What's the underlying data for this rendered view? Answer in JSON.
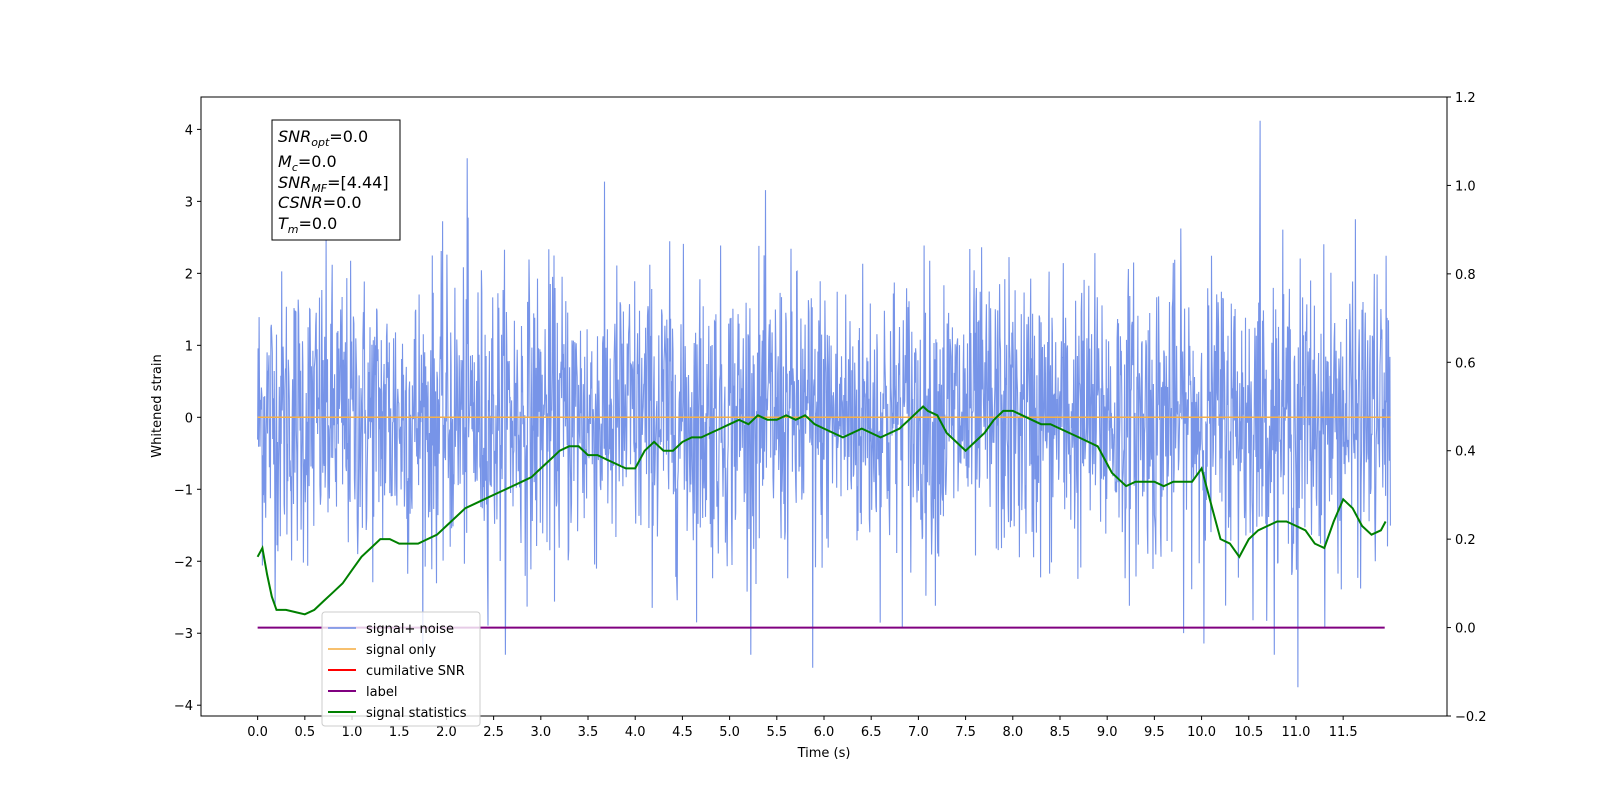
{
  "chart_data": {
    "type": "line",
    "xlabel": "Time (s)",
    "ylabel": "Whitened strain",
    "xlim": [
      -0.6,
      12.6
    ],
    "ylim": [
      -4.15,
      4.45
    ],
    "y2lim": [
      -0.2,
      1.2
    ],
    "x_ticks": [
      0.0,
      0.5,
      1.0,
      1.5,
      2.0,
      2.5,
      3.0,
      3.5,
      4.0,
      4.5,
      5.0,
      5.5,
      6.0,
      6.5,
      7.0,
      7.5,
      8.0,
      8.5,
      9.0,
      9.5,
      10.0,
      10.5,
      11.0,
      11.5
    ],
    "x_tick_labels": [
      "0.0",
      "0.5",
      "1.0",
      "1.5",
      "2.0",
      "2.5",
      "3.0",
      "3.5",
      "4.0",
      "4.5",
      "5.0",
      "5.5",
      "6.0",
      "6.5",
      "7.0",
      "7.5",
      "8.0",
      "8.5",
      "9.0",
      "9.5",
      "10.0",
      "10.5",
      "11.0",
      "11.5"
    ],
    "y_ticks": [
      -4,
      -3,
      -2,
      -1,
      0,
      1,
      2,
      3,
      4
    ],
    "y_tick_labels": [
      "−4",
      "−3",
      "−2",
      "−1",
      "0",
      "1",
      "2",
      "3",
      "4"
    ],
    "y2_ticks": [
      -0.2,
      0.0,
      0.2,
      0.4,
      0.6,
      0.8,
      1.0,
      1.2
    ],
    "y2_tick_labels": [
      "−0.2",
      "0.0",
      "0.2",
      "0.4",
      "0.6",
      "0.8",
      "1.0",
      "1.2"
    ],
    "legend_placement": "lower-left",
    "annotation_box": {
      "placement": "top-left",
      "lines": [
        {
          "base": "SNR",
          "sub": "opt",
          "value": "=0.0"
        },
        {
          "base": "M",
          "sub": "c",
          "value": "=0.0"
        },
        {
          "base": "SNR",
          "sub": "MF",
          "value": "=[4.44]"
        },
        {
          "base": "CSNR",
          "sub": "",
          "value": "=0.0"
        },
        {
          "base": "T",
          "sub": "m",
          "value": "=0.0"
        }
      ]
    },
    "series": [
      {
        "name": "signal+ noise",
        "color": "#6b8be6",
        "axis": "left",
        "x_range": [
          0.0,
          12.0
        ],
        "noise_std": 1.0,
        "notable_peaks": [
          [
            2.22,
            3.6
          ],
          [
            10.62,
            4.12
          ],
          [
            11.02,
            -3.75
          ],
          [
            5.88,
            -3.48
          ]
        ]
      },
      {
        "name": "signal only",
        "color": "#f5b04a",
        "axis": "left",
        "x": [
          0.0,
          12.0
        ],
        "y": [
          0.0,
          0.0
        ]
      },
      {
        "name": "cumilative SNR",
        "color": "#ff0000",
        "axis": "right",
        "x": [],
        "y": []
      },
      {
        "name": "label",
        "color": "#800080",
        "axis": "right",
        "x": [
          0.0,
          11.94
        ],
        "y": [
          0.0,
          0.0
        ]
      },
      {
        "name": "signal statistics",
        "color": "#008000",
        "axis": "right",
        "x": [
          0.0,
          0.05,
          0.1,
          0.15,
          0.2,
          0.3,
          0.4,
          0.5,
          0.6,
          0.7,
          0.8,
          0.9,
          1.0,
          1.1,
          1.2,
          1.3,
          1.4,
          1.5,
          1.6,
          1.7,
          1.8,
          1.9,
          2.0,
          2.1,
          2.2,
          2.3,
          2.4,
          2.5,
          2.6,
          2.7,
          2.8,
          2.9,
          3.0,
          3.1,
          3.2,
          3.3,
          3.4,
          3.5,
          3.6,
          3.7,
          3.8,
          3.9,
          4.0,
          4.1,
          4.2,
          4.3,
          4.4,
          4.5,
          4.6,
          4.7,
          4.8,
          4.9,
          5.0,
          5.1,
          5.2,
          5.3,
          5.4,
          5.5,
          5.6,
          5.7,
          5.8,
          5.9,
          6.0,
          6.1,
          6.2,
          6.3,
          6.4,
          6.5,
          6.6,
          6.7,
          6.8,
          6.9,
          7.0,
          7.05,
          7.1,
          7.2,
          7.3,
          7.4,
          7.5,
          7.6,
          7.7,
          7.8,
          7.9,
          8.0,
          8.1,
          8.2,
          8.3,
          8.4,
          8.5,
          8.6,
          8.7,
          8.8,
          8.9,
          9.0,
          9.05,
          9.1,
          9.2,
          9.3,
          9.4,
          9.5,
          9.6,
          9.7,
          9.8,
          9.9,
          10.0,
          10.1,
          10.2,
          10.3,
          10.4,
          10.5,
          10.6,
          10.7,
          10.8,
          10.9,
          11.0,
          11.1,
          11.2,
          11.3,
          11.4,
          11.5,
          11.6,
          11.7,
          11.8,
          11.9,
          11.95
        ],
        "y": [
          0.16,
          0.18,
          0.12,
          0.07,
          0.04,
          0.04,
          0.035,
          0.03,
          0.04,
          0.06,
          0.08,
          0.1,
          0.13,
          0.16,
          0.18,
          0.2,
          0.2,
          0.19,
          0.19,
          0.19,
          0.2,
          0.21,
          0.23,
          0.25,
          0.27,
          0.28,
          0.29,
          0.3,
          0.31,
          0.32,
          0.33,
          0.34,
          0.36,
          0.38,
          0.4,
          0.41,
          0.41,
          0.39,
          0.39,
          0.38,
          0.37,
          0.36,
          0.36,
          0.4,
          0.42,
          0.4,
          0.4,
          0.42,
          0.43,
          0.43,
          0.44,
          0.45,
          0.46,
          0.47,
          0.46,
          0.48,
          0.47,
          0.47,
          0.48,
          0.47,
          0.48,
          0.46,
          0.45,
          0.44,
          0.43,
          0.44,
          0.45,
          0.44,
          0.43,
          0.44,
          0.45,
          0.47,
          0.49,
          0.5,
          0.49,
          0.48,
          0.44,
          0.42,
          0.4,
          0.42,
          0.44,
          0.47,
          0.49,
          0.49,
          0.48,
          0.47,
          0.46,
          0.46,
          0.45,
          0.44,
          0.43,
          0.42,
          0.41,
          0.37,
          0.35,
          0.34,
          0.32,
          0.33,
          0.33,
          0.33,
          0.32,
          0.33,
          0.33,
          0.33,
          0.36,
          0.28,
          0.2,
          0.19,
          0.16,
          0.2,
          0.22,
          0.23,
          0.24,
          0.24,
          0.23,
          0.22,
          0.19,
          0.18,
          0.24,
          0.29,
          0.27,
          0.23,
          0.21,
          0.22,
          0.24
        ]
      }
    ]
  }
}
